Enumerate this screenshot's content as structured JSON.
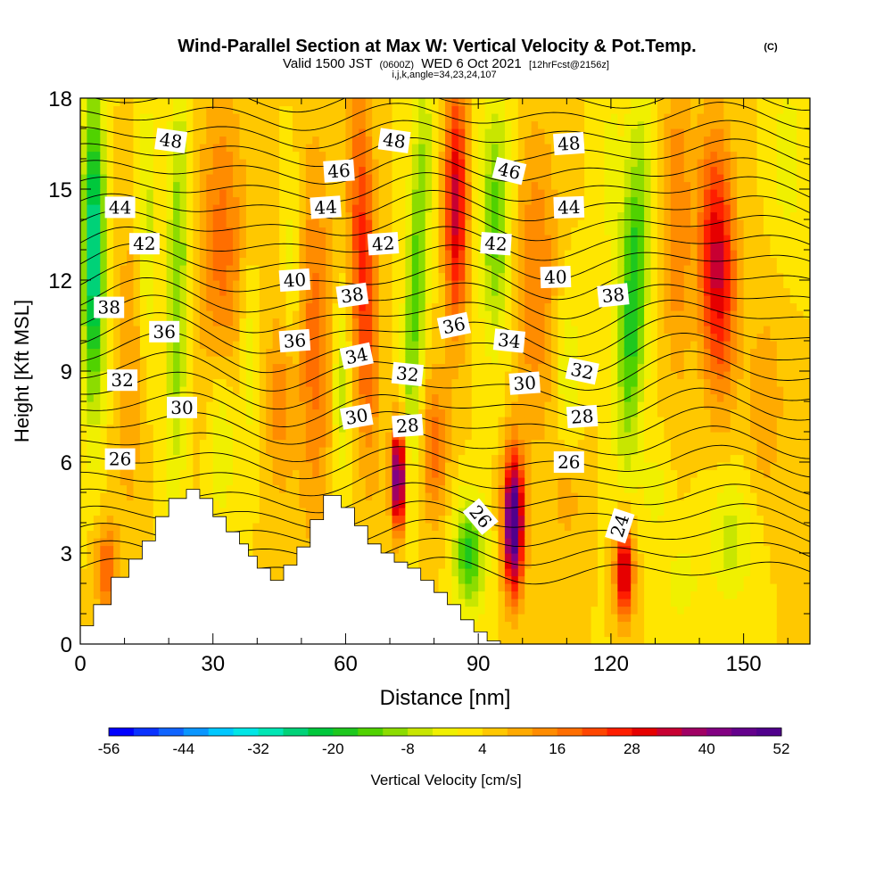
{
  "title": {
    "main": "Wind-Parallel Section at Max W: Vertical Velocity & Pot.Temp.",
    "copyright": "(C)",
    "valid_prefix": "Valid 1500 JST",
    "valid_utc": "(0600Z)",
    "valid_date": "WED 6 Oct 2021",
    "forecast": "[12hrFcst@2156z]",
    "indices": "i,j,k,angle=34,23,24,107"
  },
  "chart_data": {
    "type": "heatmap",
    "xlabel": "Distance [nm]",
    "ylabel": "Height [Kft MSL]",
    "xlim": [
      0,
      165
    ],
    "ylim": [
      0,
      18
    ],
    "x_ticks": [
      0,
      30,
      60,
      90,
      120,
      150
    ],
    "y_ticks": [
      0,
      3,
      6,
      9,
      12,
      15,
      18
    ],
    "colorbar": {
      "label": "Vertical Velocity [cm/s]",
      "min": -56,
      "max": 52,
      "step": 4,
      "tick_labels": [
        -56,
        -44,
        -32,
        -20,
        -8,
        4,
        16,
        28,
        40,
        52
      ],
      "colors": [
        "#0000ff",
        "#0a32ff",
        "#1064ff",
        "#0a96ff",
        "#00c8ff",
        "#00e6e6",
        "#00e6b4",
        "#00d278",
        "#00c83c",
        "#1ec81e",
        "#50d200",
        "#8cdc00",
        "#c8e600",
        "#f0f000",
        "#ffe600",
        "#ffc800",
        "#ffaa00",
        "#ff8c00",
        "#ff6e00",
        "#ff4600",
        "#ff1e00",
        "#e60000",
        "#c80032",
        "#a00064",
        "#820082",
        "#64008c",
        "#50008c"
      ]
    },
    "terrain_profile": [
      [
        0,
        0.6
      ],
      [
        3,
        0.6
      ],
      [
        3,
        1.3
      ],
      [
        7,
        1.3
      ],
      [
        7,
        2.2
      ],
      [
        11,
        2.2
      ],
      [
        11,
        2.8
      ],
      [
        14,
        2.8
      ],
      [
        14,
        3.4
      ],
      [
        17,
        3.4
      ],
      [
        17,
        4.2
      ],
      [
        20,
        4.2
      ],
      [
        20,
        4.8
      ],
      [
        24,
        4.8
      ],
      [
        24,
        5.1
      ],
      [
        27,
        5.1
      ],
      [
        27,
        4.8
      ],
      [
        30,
        4.8
      ],
      [
        30,
        4.2
      ],
      [
        33,
        4.2
      ],
      [
        33,
        3.7
      ],
      [
        36,
        3.7
      ],
      [
        36,
        3.3
      ],
      [
        38,
        3.3
      ],
      [
        38,
        2.9
      ],
      [
        40,
        2.9
      ],
      [
        40,
        2.5
      ],
      [
        43,
        2.5
      ],
      [
        43,
        2.1
      ],
      [
        46,
        2.1
      ],
      [
        46,
        2.6
      ],
      [
        49,
        2.6
      ],
      [
        49,
        3.2
      ],
      [
        52,
        3.2
      ],
      [
        52,
        4.1
      ],
      [
        55,
        4.1
      ],
      [
        55,
        4.9
      ],
      [
        59,
        4.9
      ],
      [
        59,
        4.5
      ],
      [
        62,
        4.5
      ],
      [
        62,
        3.9
      ],
      [
        65,
        3.9
      ],
      [
        65,
        3.3
      ],
      [
        68,
        3.3
      ],
      [
        68,
        3.0
      ],
      [
        71,
        3.0
      ],
      [
        71,
        2.7
      ],
      [
        74,
        2.7
      ],
      [
        74,
        2.5
      ],
      [
        77,
        2.5
      ],
      [
        77,
        2.1
      ],
      [
        80,
        2.1
      ],
      [
        80,
        1.7
      ],
      [
        83,
        1.7
      ],
      [
        83,
        1.3
      ],
      [
        86,
        1.3
      ],
      [
        86,
        0.8
      ],
      [
        89,
        0.8
      ],
      [
        89,
        0.4
      ],
      [
        92,
        0.4
      ],
      [
        92,
        0.1
      ],
      [
        95,
        0.1
      ],
      [
        95,
        0.0
      ]
    ],
    "velocity_features": [
      {
        "x": 3,
        "z": 13.0,
        "sx": 2.5,
        "sz": 5.0,
        "w": -34,
        "tilt": 0
      },
      {
        "x": 6,
        "z": 2.5,
        "sx": 2.5,
        "sz": 1.5,
        "w": 16,
        "tilt": 0
      },
      {
        "x": 11,
        "z": 9.0,
        "sx": 3.0,
        "sz": 5.0,
        "w": 8,
        "tilt": 0
      },
      {
        "x": 15,
        "z": 14.0,
        "sx": 2.0,
        "sz": 4.0,
        "w": -10,
        "tilt": 0
      },
      {
        "x": 22,
        "z": 12.0,
        "sx": 2.5,
        "sz": 7.0,
        "w": -16,
        "tilt": 0.1
      },
      {
        "x": 32,
        "z": 13.0,
        "sx": 5.0,
        "sz": 5.0,
        "w": 14,
        "tilt": 0
      },
      {
        "x": 32,
        "z": 7.0,
        "sx": 3.0,
        "sz": 3.0,
        "w": -10,
        "tilt": 0
      },
      {
        "x": 38,
        "z": 9.5,
        "sx": 2.0,
        "sz": 3.0,
        "w": -8,
        "tilt": 0
      },
      {
        "x": 45,
        "z": 8.0,
        "sx": 3.0,
        "sz": 3.0,
        "w": 10,
        "tilt": 0
      },
      {
        "x": 48,
        "z": 12.5,
        "sx": 2.0,
        "sz": 3.0,
        "w": -8,
        "tilt": 0
      },
      {
        "x": 53,
        "z": 10.0,
        "sx": 4.0,
        "sz": 6.0,
        "w": 14,
        "tilt": 0
      },
      {
        "x": 59,
        "z": 8.5,
        "sx": 2.0,
        "sz": 3.0,
        "w": -12,
        "tilt": 0
      },
      {
        "x": 64,
        "z": 12.5,
        "sx": 3.0,
        "sz": 6.0,
        "w": 22,
        "tilt": -0.2
      },
      {
        "x": 72,
        "z": 5.5,
        "sx": 1.6,
        "sz": 1.8,
        "w": 48,
        "tilt": 0
      },
      {
        "x": 76,
        "z": 12.0,
        "sx": 2.5,
        "sz": 7.0,
        "w": -18,
        "tilt": 0.3
      },
      {
        "x": 80,
        "z": 6.5,
        "sx": 3.0,
        "sz": 2.5,
        "w": 14,
        "tilt": 0
      },
      {
        "x": 85,
        "z": 14.5,
        "sx": 2.5,
        "sz": 4.0,
        "w": 30,
        "tilt": 0
      },
      {
        "x": 88,
        "z": 3.0,
        "sx": 3.5,
        "sz": 1.8,
        "w": -22,
        "tilt": 0
      },
      {
        "x": 94,
        "z": 14.0,
        "sx": 3.5,
        "sz": 4.0,
        "w": -18,
        "tilt": 0
      },
      {
        "x": 98,
        "z": 4.0,
        "sx": 2.2,
        "sz": 2.2,
        "w": 52,
        "tilt": 0
      },
      {
        "x": 103,
        "z": 12.0,
        "sx": 5.0,
        "sz": 5.0,
        "w": 12,
        "tilt": 0
      },
      {
        "x": 110,
        "z": 9.0,
        "sx": 3.0,
        "sz": 3.0,
        "w": -8,
        "tilt": 0
      },
      {
        "x": 123,
        "z": 2.5,
        "sx": 2.0,
        "sz": 1.6,
        "w": 34,
        "tilt": 0
      },
      {
        "x": 125,
        "z": 11.5,
        "sx": 3.2,
        "sz": 5.5,
        "w": -24,
        "tilt": 0.25
      },
      {
        "x": 120,
        "z": 15.5,
        "sx": 2.5,
        "sz": 3.0,
        "w": -6,
        "tilt": 0
      },
      {
        "x": 135,
        "z": 14.0,
        "sx": 3.0,
        "sz": 5.0,
        "w": 12,
        "tilt": 0
      },
      {
        "x": 144,
        "z": 12.5,
        "sx": 4.0,
        "sz": 4.0,
        "w": 30,
        "tilt": -0.15
      },
      {
        "x": 147,
        "z": 3.5,
        "sx": 5.0,
        "sz": 2.0,
        "w": -10,
        "tilt": 0
      },
      {
        "x": 136,
        "z": 2.0,
        "sx": 4.0,
        "sz": 1.5,
        "w": -6,
        "tilt": 0
      },
      {
        "x": 155,
        "z": 8.0,
        "sx": 4.0,
        "sz": 3.0,
        "w": 8,
        "tilt": 0
      },
      {
        "x": 160,
        "z": 16.0,
        "sx": 3.0,
        "sz": 2.5,
        "w": -8,
        "tilt": 0
      },
      {
        "x": 110,
        "z": 5.0,
        "sx": 4.0,
        "sz": 2.0,
        "w": 6,
        "tilt": 0
      },
      {
        "x": 130,
        "z": 5.0,
        "sx": 3.0,
        "sz": 1.5,
        "w": -6,
        "tilt": 0
      }
    ],
    "theta_contour_labels": [
      {
        "text": "48",
        "x": 20.5,
        "z": 16.6,
        "angle": 8
      },
      {
        "text": "48",
        "x": 71.0,
        "z": 16.6,
        "angle": 8
      },
      {
        "text": "48",
        "x": 110.5,
        "z": 16.5,
        "angle": -4
      },
      {
        "text": "46",
        "x": 58.5,
        "z": 15.6,
        "angle": -4
      },
      {
        "text": "46",
        "x": 97.0,
        "z": 15.6,
        "angle": 14
      },
      {
        "text": "44",
        "x": 9.0,
        "z": 14.4,
        "angle": 0
      },
      {
        "text": "44",
        "x": 55.5,
        "z": 14.4,
        "angle": -4
      },
      {
        "text": "44",
        "x": 110.5,
        "z": 14.4,
        "angle": -2
      },
      {
        "text": "42",
        "x": 14.5,
        "z": 13.2,
        "angle": 0
      },
      {
        "text": "42",
        "x": 68.5,
        "z": 13.2,
        "angle": -4
      },
      {
        "text": "42",
        "x": 94.0,
        "z": 13.2,
        "angle": 4
      },
      {
        "text": "40",
        "x": 48.5,
        "z": 12.0,
        "angle": -4
      },
      {
        "text": "40",
        "x": 107.5,
        "z": 12.1,
        "angle": -2
      },
      {
        "text": "38",
        "x": 6.5,
        "z": 11.1,
        "angle": 0
      },
      {
        "text": "38",
        "x": 61.5,
        "z": 11.5,
        "angle": -8
      },
      {
        "text": "38",
        "x": 120.5,
        "z": 11.5,
        "angle": -6
      },
      {
        "text": "36",
        "x": 19.0,
        "z": 10.3,
        "angle": 0
      },
      {
        "text": "36",
        "x": 48.5,
        "z": 10.0,
        "angle": -4
      },
      {
        "text": "36",
        "x": 84.5,
        "z": 10.5,
        "angle": -12
      },
      {
        "text": "34",
        "x": 62.5,
        "z": 9.5,
        "angle": -12
      },
      {
        "text": "34",
        "x": 97.0,
        "z": 10.0,
        "angle": 6
      },
      {
        "text": "32",
        "x": 9.5,
        "z": 8.7,
        "angle": 0
      },
      {
        "text": "32",
        "x": 74.0,
        "z": 8.9,
        "angle": 6
      },
      {
        "text": "32",
        "x": 113.5,
        "z": 9.0,
        "angle": 12
      },
      {
        "text": "30",
        "x": 23.0,
        "z": 7.8,
        "angle": 0
      },
      {
        "text": "30",
        "x": 62.5,
        "z": 7.5,
        "angle": -10
      },
      {
        "text": "30",
        "x": 100.5,
        "z": 8.6,
        "angle": -4
      },
      {
        "text": "28",
        "x": 74.0,
        "z": 7.2,
        "angle": -4
      },
      {
        "text": "28",
        "x": 113.5,
        "z": 7.5,
        "angle": -4
      },
      {
        "text": "26",
        "x": 9.0,
        "z": 6.1,
        "angle": 0
      },
      {
        "text": "26",
        "x": 110.5,
        "z": 6.0,
        "angle": 0
      },
      {
        "text": "26",
        "x": 90.5,
        "z": 4.2,
        "angle": 50
      },
      {
        "text": "24",
        "x": 122.0,
        "z": 3.9,
        "angle": -72
      }
    ]
  }
}
